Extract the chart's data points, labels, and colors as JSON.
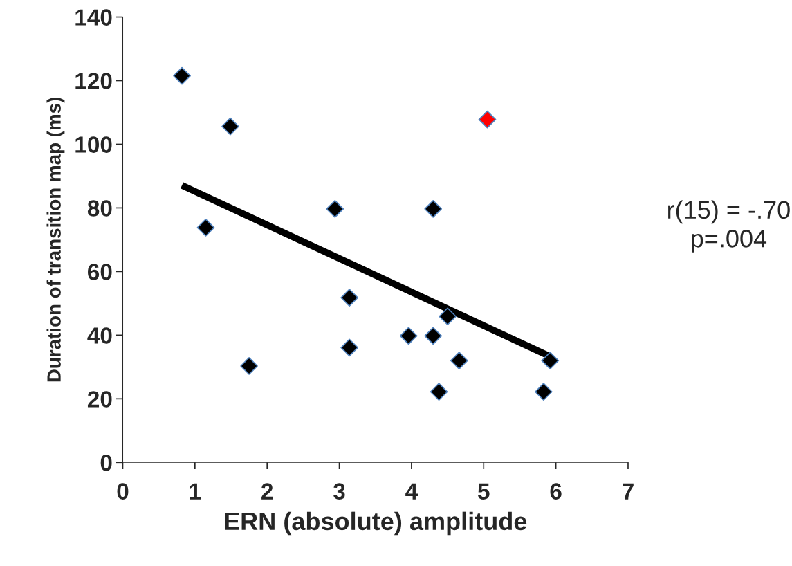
{
  "chart_data": {
    "type": "scatter",
    "xlabel": "ERN (absolute) amplitude",
    "ylabel": "Duration of transition map (ms)",
    "xlim": [
      0,
      7
    ],
    "xticks": [
      0,
      1,
      2,
      3,
      4,
      5,
      6,
      7
    ],
    "ylim": [
      0,
      140
    ],
    "yticks": [
      0,
      20,
      40,
      60,
      80,
      100,
      120,
      140
    ],
    "grid": false,
    "marker": "diamond",
    "series": [
      {
        "color": "#000000",
        "x": [
          0.82,
          1.49,
          1.15,
          1.75,
          2.94,
          3.14,
          3.14,
          3.96,
          4.3,
          4.3,
          4.38,
          4.5,
          4.66,
          5.83,
          5.92
        ],
        "values": [
          121.5,
          105.6,
          73.8,
          30.3,
          79.7,
          51.8,
          36.1,
          39.8,
          39.8,
          79.7,
          22.2,
          45.9,
          32.0,
          22.2,
          32.0
        ]
      },
      {
        "color": "#ff0000",
        "x": [
          5.05
        ],
        "values": [
          107.8
        ]
      },
      {
        "type": "line",
        "color": "#000000",
        "x": [
          0.82,
          5.92
        ],
        "values": [
          87.1,
          33.3
        ],
        "marker": "none"
      }
    ],
    "annotations": [
      "r(15) = -.70\np=.004"
    ]
  }
}
